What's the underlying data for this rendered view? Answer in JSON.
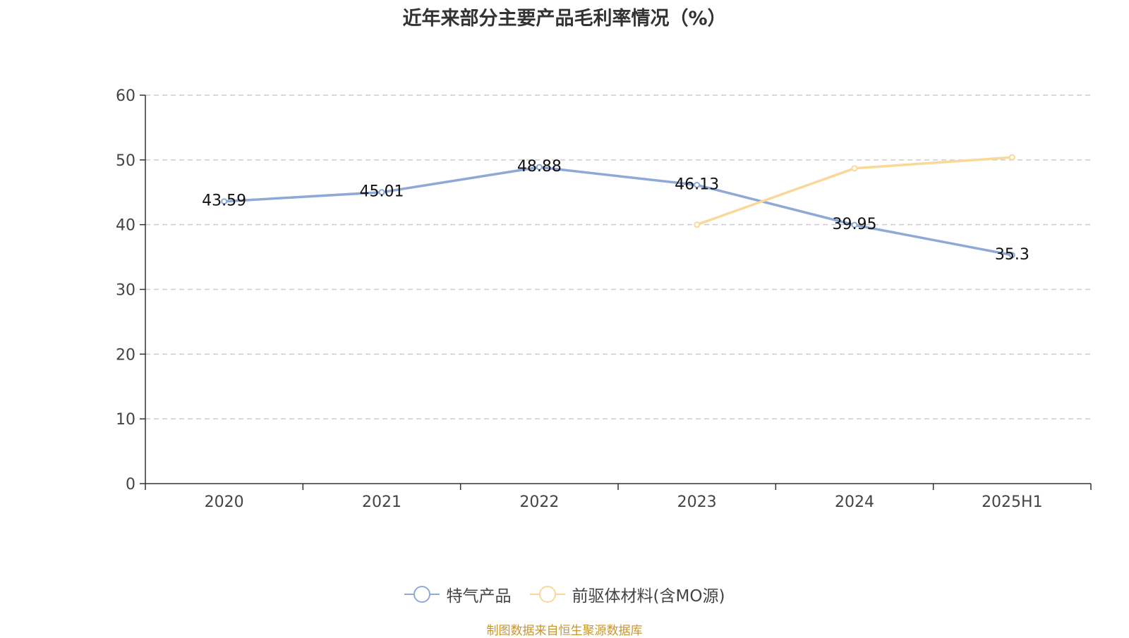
{
  "chart_data": {
    "type": "line",
    "title": "近年来部分主要产品毛利率情况（%）",
    "categories": [
      "2020",
      "2021",
      "2022",
      "2023",
      "2024",
      "2025H1"
    ],
    "ylim": [
      0,
      60
    ],
    "yticks": [
      0,
      10,
      20,
      30,
      40,
      50,
      60
    ],
    "grid": true,
    "legend_position": "bottom",
    "series": [
      {
        "name": "特气产品",
        "color": "#8fa9d6",
        "values": [
          43.59,
          45.01,
          48.88,
          46.13,
          39.95,
          35.3
        ],
        "labels": [
          "43.59",
          "45.01",
          "48.88",
          "46.13",
          "39.95",
          "35.3"
        ]
      },
      {
        "name": "前驱体材料(含MO源)",
        "color": "#f9d898",
        "values": [
          null,
          null,
          null,
          40,
          48.7,
          50.4
        ],
        "labels": []
      }
    ]
  },
  "source": {
    "text": "制图数据来自恒生聚源数据库",
    "color": "#c8962c"
  }
}
